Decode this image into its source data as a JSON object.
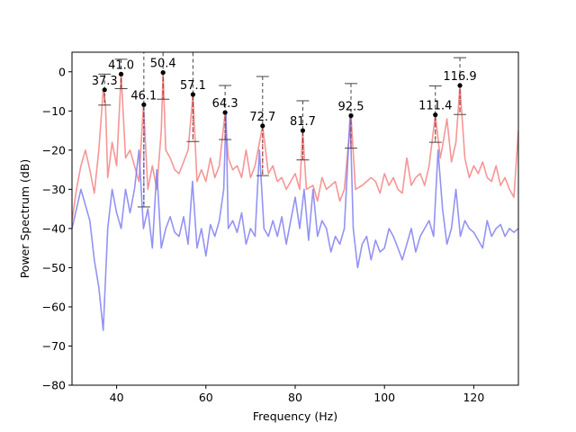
{
  "chart_data": {
    "type": "line",
    "xlabel": "Frequency (Hz)",
    "ylabel": "Power Spectrum (dB)",
    "xlim": [
      30,
      130
    ],
    "ylim": [
      -80,
      5
    ],
    "xticks": [
      40,
      60,
      80,
      100,
      120
    ],
    "yticks": [
      -80,
      -70,
      -60,
      -50,
      -40,
      -30,
      -20,
      -10,
      0
    ],
    "grid": false,
    "colors": {
      "red_series": "#f47c7c",
      "blue_series": "#7878f0",
      "peak": "#000000",
      "stem_red": "#d92020",
      "stem_blue": "#2020c8",
      "error": "#444444"
    },
    "series": [
      {
        "name": "red spectrum",
        "color": "#f47c7c",
        "x": [
          30,
          31,
          32,
          33,
          34,
          35,
          36,
          37,
          37.5,
          38,
          39,
          40,
          41,
          42,
          43,
          44,
          45,
          46,
          47,
          48,
          49,
          50,
          50.4,
          51,
          52,
          53,
          54,
          55,
          56,
          57.1,
          58,
          59,
          60,
          61,
          62,
          63,
          64.3,
          65,
          66,
          67,
          68,
          69,
          70,
          71,
          72.7,
          74,
          75,
          76,
          77,
          78,
          79,
          80,
          81,
          81.7,
          82.5,
          84,
          85,
          86,
          87,
          88,
          89,
          90,
          91,
          92.5,
          93.5,
          95,
          96,
          97,
          98,
          99,
          100,
          101,
          102,
          103,
          104,
          105,
          106,
          107,
          108,
          109,
          110,
          111.4,
          112.5,
          113,
          114,
          115,
          116,
          116.9,
          118,
          119,
          120,
          121,
          122,
          123,
          124,
          125,
          126,
          127,
          128,
          129,
          130
        ],
        "y": [
          -38,
          -30,
          -24,
          -20,
          -25,
          -31,
          -20,
          -4.6,
          -8,
          -27,
          -18,
          -24,
          -0.6,
          -22,
          -20,
          -24,
          -28,
          -8.4,
          -30,
          -24,
          -30,
          -15,
          -0.2,
          -20,
          -22,
          -25,
          -26,
          -23,
          -20,
          -5.8,
          -28,
          -25,
          -28,
          -22,
          -27,
          -24,
          -10.4,
          -22,
          -25,
          -24,
          -27,
          -20,
          -27,
          -24,
          -13.8,
          -26,
          -24,
          -28,
          -27,
          -30,
          -28,
          -26,
          -30,
          -15,
          -30,
          -29,
          -33,
          -27,
          -30,
          -29,
          -28,
          -33,
          -30,
          -11.2,
          -30,
          -29,
          -28,
          -27,
          -28,
          -31,
          -26,
          -29,
          -27,
          -30,
          -31,
          -22,
          -29,
          -27,
          -26,
          -29,
          -24,
          -11,
          -22,
          -19,
          -12,
          -23,
          -18,
          -3.5,
          -22,
          -27,
          -24,
          -26,
          -23,
          -27,
          -28,
          -24,
          -29,
          -27,
          -30,
          -32,
          -15
        ]
      },
      {
        "name": "blue spectrum",
        "color": "#7878f0",
        "x": [
          30,
          31,
          32,
          33,
          34,
          35,
          36,
          37,
          38,
          39,
          40,
          41,
          42,
          43,
          44,
          45,
          46,
          47,
          48,
          49,
          50,
          51,
          52,
          53,
          54,
          55,
          56,
          57,
          58,
          59,
          60,
          61,
          62,
          63,
          64,
          64.5,
          65,
          66,
          67,
          68,
          69,
          70,
          71,
          72,
          73,
          74,
          75,
          76,
          77,
          78,
          79,
          80,
          81,
          82,
          83,
          84,
          85,
          86,
          87,
          88,
          89,
          90,
          91,
          92.3,
          93,
          94,
          95,
          96,
          97,
          98,
          99,
          100,
          101,
          102,
          103,
          104,
          105,
          106,
          107,
          108,
          109,
          110,
          111,
          112,
          113,
          114,
          115,
          116,
          117,
          118,
          119,
          120,
          121,
          122,
          123,
          124,
          125,
          126,
          127,
          128,
          129,
          130
        ],
        "y": [
          -40,
          -35,
          -30,
          -34,
          -38,
          -48,
          -55,
          -66,
          -40,
          -30,
          -36,
          -40,
          -30,
          -36,
          -30,
          -20,
          -40,
          -35,
          -45,
          -25,
          -45,
          -40,
          -37,
          -41,
          -42,
          -37,
          -44,
          -28,
          -45,
          -40,
          -47,
          -39,
          -42,
          -38,
          -30,
          -10.3,
          -40,
          -38,
          -41,
          -36,
          -44,
          -40,
          -42,
          -20,
          -40,
          -42,
          -38,
          -42,
          -37,
          -44,
          -38,
          -32,
          -40,
          -30,
          -43,
          -30,
          -42,
          -38,
          -40,
          -46,
          -42,
          -44,
          -40,
          -11,
          -40,
          -50,
          -44,
          -42,
          -48,
          -43,
          -46,
          -45,
          -40,
          -42,
          -45,
          -48,
          -44,
          -40,
          -46,
          -42,
          -40,
          -38,
          -42,
          -20,
          -35,
          -44,
          -40,
          -30,
          -42,
          -38,
          -40,
          -41,
          -43,
          -45,
          -38,
          -42,
          -40,
          -39,
          -42,
          -40,
          -41,
          -40
        ]
      }
    ],
    "peaks": [
      {
        "label": "37.3",
        "x": 37.3,
        "y": -4.6,
        "stem": "red",
        "err_low": -8.5,
        "err_high": -0.6
      },
      {
        "label": "41.0",
        "x": 41.0,
        "y": -0.6,
        "stem": "red",
        "err_low": -4.3,
        "err_high": 3.2
      },
      {
        "label": "46.1",
        "x": 46.1,
        "y": -8.4,
        "stem": "blue",
        "err_low": -34.5,
        "err_high": 20
      },
      {
        "label": "50.4",
        "x": 50.4,
        "y": -0.2,
        "stem": "red",
        "err_low": -7.0,
        "err_high": 6.5
      },
      {
        "label": "57.1",
        "x": 57.1,
        "y": -5.8,
        "stem": "red",
        "err_low": -17.8,
        "err_high": 6.5
      },
      {
        "label": "64.3",
        "x": 64.3,
        "y": -10.4,
        "stem": "red",
        "err_low": -17.3,
        "err_high": -3.5
      },
      {
        "label": "72.7",
        "x": 72.7,
        "y": -13.8,
        "stem": "red",
        "err_low": -26.5,
        "err_high": -1.2
      },
      {
        "label": "81.7",
        "x": 81.7,
        "y": -15.0,
        "stem": "red",
        "err_low": -22.5,
        "err_high": -7.4
      },
      {
        "label": "92.5",
        "x": 92.5,
        "y": -11.2,
        "stem": "red",
        "err_low": -19.5,
        "err_high": -3.0
      },
      {
        "label": "111.4",
        "x": 111.4,
        "y": -11.0,
        "stem": "red",
        "err_low": -18.0,
        "err_high": -3.6
      },
      {
        "label": "116.9",
        "x": 116.9,
        "y": -3.5,
        "stem": "red",
        "err_low": -10.9,
        "err_high": 3.6
      }
    ]
  }
}
